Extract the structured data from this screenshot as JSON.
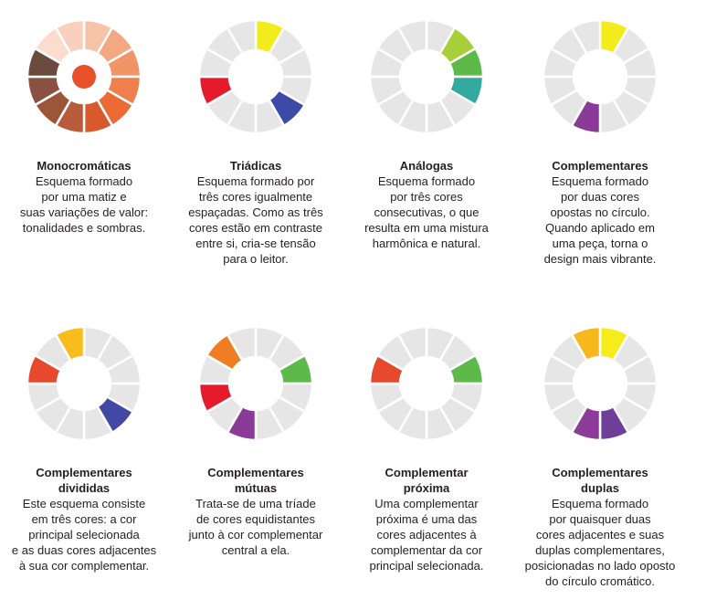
{
  "items": [
    {
      "title": [
        "Monocromáticas"
      ],
      "lines": [
        "Esquema formado",
        "por uma matiz e",
        "suas variações de valor:",
        "tonalidades e sombras."
      ]
    },
    {
      "title": [
        "Triádicas"
      ],
      "lines": [
        "Esquema formado por",
        "três cores igualmente",
        "espaçadas. Como as três",
        "cores estão em contraste",
        "entre si, cria-se tensão",
        "para o leitor."
      ]
    },
    {
      "title": [
        "Análogas"
      ],
      "lines": [
        "Esquema formado",
        "por três cores",
        "consecutivas, o que",
        "resulta em uma mistura",
        "harmônica e natural."
      ]
    },
    {
      "title": [
        "Complementares"
      ],
      "lines": [
        "Esquema formado",
        "por duas cores",
        "opostas no círculo.",
        "Quando aplicado em",
        "uma peça, torna o",
        "design mais vibrante."
      ]
    },
    {
      "title": [
        "Complementares",
        "divididas"
      ],
      "lines": [
        "Este esquema consiste",
        "em três cores: a cor",
        "principal selecionada",
        "e as duas cores adjacentes",
        "à sua cor complementar."
      ]
    },
    {
      "title": [
        "Complementares",
        "mútuas"
      ],
      "lines": [
        "Trata-se de uma tríade",
        "de cores equidistantes",
        "junto à cor complementar",
        "central a ela."
      ]
    },
    {
      "title": [
        "Complementar",
        "próxima"
      ],
      "lines": [
        "Uma complementar",
        "próxima é uma das",
        "cores adjacentes à",
        "complementar da cor",
        "principal selecionada."
      ]
    },
    {
      "title": [
        "Complementares",
        "duplas"
      ],
      "lines": [
        "Esquema formado",
        "por quaisquer duas",
        "cores adjacentes e suas",
        "duplas complementares,",
        "posicionadas no lado oposto",
        "do círculo cromático."
      ]
    }
  ]
}
